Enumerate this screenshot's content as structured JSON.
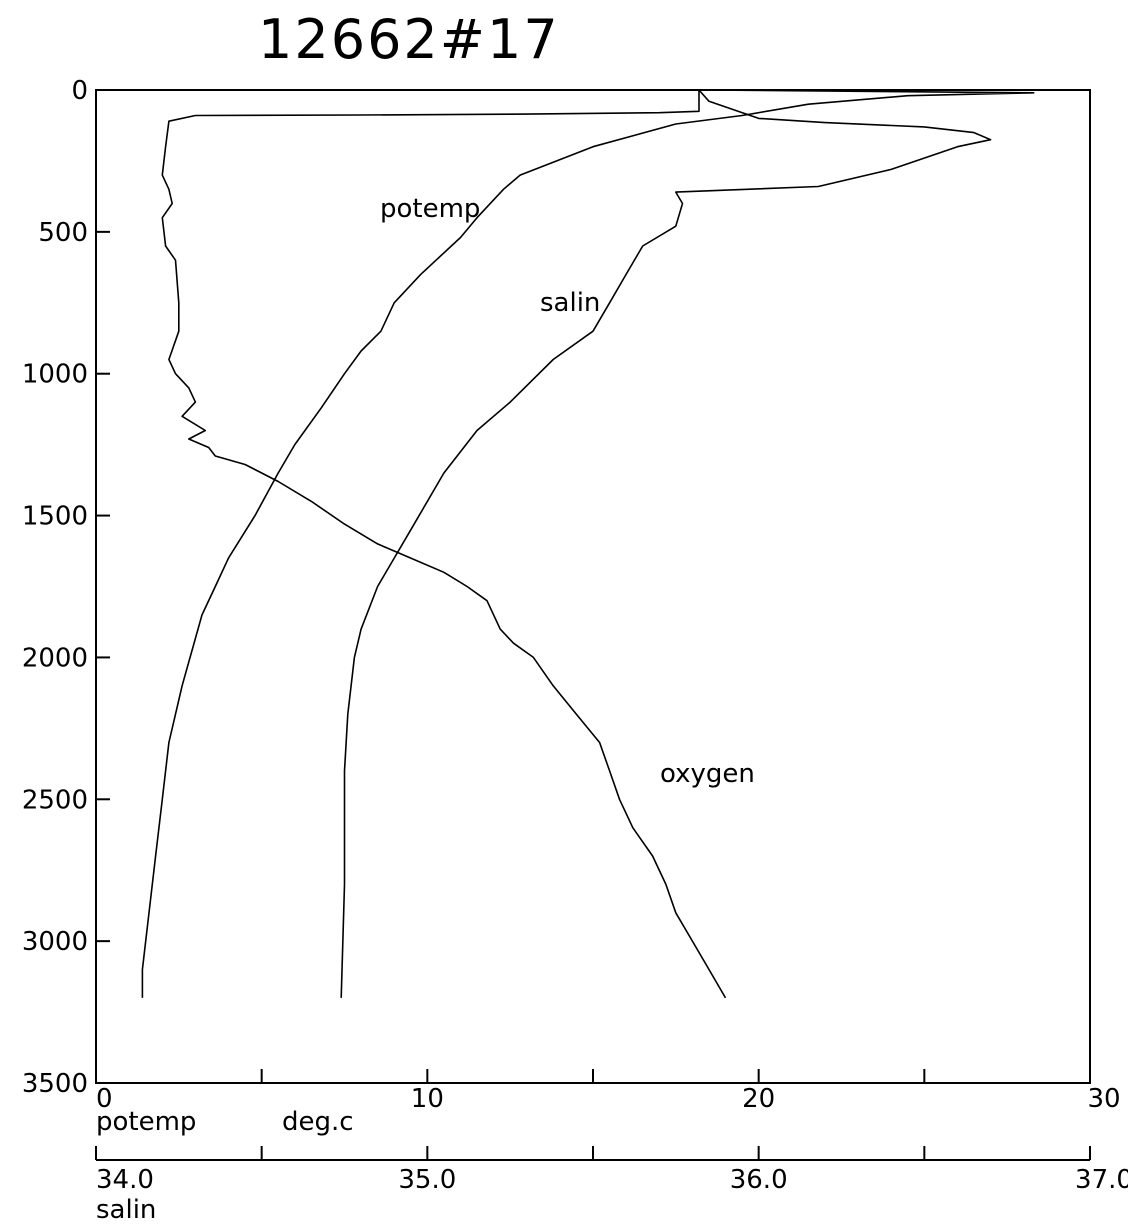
{
  "chart_data": {
    "type": "line",
    "title": "12662#17",
    "y_axis": {
      "range": [
        0,
        3500
      ],
      "inverted": true,
      "ticks": [
        0,
        500,
        1000,
        1500,
        2000,
        2500,
        3000,
        3500
      ],
      "tick_labels": [
        "0",
        "500",
        "1000",
        "1500",
        "2000",
        "2500",
        "3000",
        "3500"
      ]
    },
    "x_axes": [
      {
        "id": "potemp",
        "name": "potemp",
        "unit": "deg.c",
        "range": [
          0,
          30
        ],
        "ticks": [
          0,
          5,
          10,
          15,
          20,
          25,
          30
        ],
        "label_values": [
          0,
          10,
          20,
          30
        ],
        "tick_labels": [
          "0",
          "10",
          "20",
          "30"
        ]
      },
      {
        "id": "salin",
        "name": "salin",
        "range": [
          34.0,
          37.0
        ],
        "ticks": [
          34.0,
          34.5,
          35.0,
          35.5,
          36.0,
          36.5,
          37.0
        ],
        "label_values": [
          34.0,
          35.0,
          36.0,
          37.0
        ],
        "tick_labels": [
          "34.0",
          "35.0",
          "36.0",
          "37.0"
        ]
      }
    ],
    "grid": false,
    "legend": "none",
    "series": [
      {
        "name": "potemp",
        "axis": "potemp",
        "points": [
          [
            18.4,
            0
          ],
          [
            28.3,
            10
          ],
          [
            24.5,
            20
          ],
          [
            21.5,
            50
          ],
          [
            19.5,
            90
          ],
          [
            17.5,
            120
          ],
          [
            15.0,
            200
          ],
          [
            12.8,
            300
          ],
          [
            12.3,
            350
          ],
          [
            11.5,
            450
          ],
          [
            11.0,
            520
          ],
          [
            9.8,
            650
          ],
          [
            9.0,
            750
          ],
          [
            8.6,
            850
          ],
          [
            8.0,
            920
          ],
          [
            7.5,
            1000
          ],
          [
            6.8,
            1120
          ],
          [
            6.0,
            1250
          ],
          [
            5.5,
            1350
          ],
          [
            4.8,
            1500
          ],
          [
            4.0,
            1650
          ],
          [
            3.6,
            1750
          ],
          [
            3.2,
            1850
          ],
          [
            2.6,
            2100
          ],
          [
            2.4,
            2200
          ],
          [
            2.2,
            2300
          ],
          [
            2.0,
            2500
          ],
          [
            1.8,
            2700
          ],
          [
            1.6,
            2900
          ],
          [
            1.5,
            3000
          ],
          [
            1.4,
            3100
          ],
          [
            1.4,
            3200
          ]
        ]
      },
      {
        "name": "salin",
        "axis": "salin",
        "points": [
          [
            35.82,
            0
          ],
          [
            35.85,
            40
          ],
          [
            36.0,
            100
          ],
          [
            36.2,
            115
          ],
          [
            36.5,
            130
          ],
          [
            36.65,
            150
          ],
          [
            36.7,
            175
          ],
          [
            36.6,
            200
          ],
          [
            36.4,
            280
          ],
          [
            36.18,
            340
          ],
          [
            35.75,
            360
          ],
          [
            35.77,
            400
          ],
          [
            35.75,
            480
          ],
          [
            35.65,
            550
          ],
          [
            35.6,
            650
          ],
          [
            35.55,
            750
          ],
          [
            35.5,
            850
          ],
          [
            35.38,
            950
          ],
          [
            35.25,
            1100
          ],
          [
            35.15,
            1200
          ],
          [
            35.05,
            1350
          ],
          [
            34.95,
            1550
          ],
          [
            34.9,
            1650
          ],
          [
            34.85,
            1750
          ],
          [
            34.8,
            1900
          ],
          [
            34.78,
            2000
          ],
          [
            34.76,
            2200
          ],
          [
            34.75,
            2400
          ],
          [
            34.75,
            2800
          ],
          [
            34.74,
            3200
          ]
        ]
      },
      {
        "name": "oxygen",
        "axis": "potemp",
        "points": [
          [
            18.2,
            0
          ],
          [
            18.2,
            50
          ],
          [
            18.2,
            75
          ],
          [
            17.0,
            80
          ],
          [
            13.0,
            85
          ],
          [
            8.0,
            88
          ],
          [
            3.0,
            90
          ],
          [
            2.2,
            110
          ],
          [
            2.1,
            200
          ],
          [
            2.0,
            300
          ],
          [
            2.2,
            350
          ],
          [
            2.3,
            400
          ],
          [
            2.0,
            450
          ],
          [
            2.1,
            550
          ],
          [
            2.4,
            600
          ],
          [
            2.5,
            750
          ],
          [
            2.5,
            850
          ],
          [
            2.2,
            950
          ],
          [
            2.4,
            1000
          ],
          [
            2.8,
            1050
          ],
          [
            3.0,
            1100
          ],
          [
            2.6,
            1150
          ],
          [
            3.3,
            1200
          ],
          [
            2.8,
            1230
          ],
          [
            3.4,
            1260
          ],
          [
            3.6,
            1290
          ],
          [
            4.5,
            1320
          ],
          [
            5.5,
            1380
          ],
          [
            6.5,
            1450
          ],
          [
            7.5,
            1530
          ],
          [
            8.5,
            1600
          ],
          [
            9.5,
            1650
          ],
          [
            10.5,
            1700
          ],
          [
            11.2,
            1750
          ],
          [
            11.8,
            1800
          ],
          [
            12.2,
            1900
          ],
          [
            12.6,
            1950
          ],
          [
            13.2,
            2000
          ],
          [
            13.8,
            2100
          ],
          [
            14.5,
            2200
          ],
          [
            15.2,
            2300
          ],
          [
            15.5,
            2400
          ],
          [
            15.8,
            2500
          ],
          [
            16.2,
            2600
          ],
          [
            16.8,
            2700
          ],
          [
            17.2,
            2800
          ],
          [
            17.5,
            2900
          ],
          [
            18.0,
            3000
          ],
          [
            18.5,
            3100
          ],
          [
            19.0,
            3200
          ]
        ]
      }
    ],
    "annotations": [
      "potemp",
      "salin",
      "oxygen"
    ]
  }
}
